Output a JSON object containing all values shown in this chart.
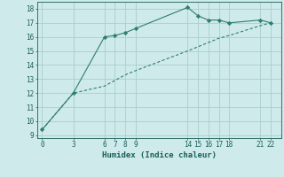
{
  "line1_x": [
    0,
    3,
    6,
    7,
    8,
    9,
    14,
    15,
    16,
    17,
    18,
    21,
    22
  ],
  "line1_y": [
    9.4,
    12.0,
    16.0,
    16.1,
    16.3,
    16.6,
    18.1,
    17.5,
    17.2,
    17.2,
    17.0,
    17.2,
    17.0
  ],
  "line2_x": [
    0,
    3,
    6,
    7,
    8,
    9,
    14,
    15,
    16,
    17,
    18,
    21,
    22
  ],
  "line2_y": [
    9.4,
    12.0,
    12.5,
    12.9,
    13.3,
    13.6,
    15.0,
    15.3,
    15.6,
    15.9,
    16.1,
    16.8,
    17.0
  ],
  "xlabel": "Humidex (Indice chaleur)",
  "xticks": [
    0,
    3,
    6,
    7,
    8,
    9,
    14,
    15,
    16,
    17,
    18,
    21,
    22
  ],
  "yticks": [
    9,
    10,
    11,
    12,
    13,
    14,
    15,
    16,
    17,
    18
  ],
  "ylim": [
    8.8,
    18.5
  ],
  "xlim": [
    -0.5,
    23.0
  ],
  "line_color": "#2e7d6e",
  "bg_color": "#ceeaea",
  "grid_color": "#aacece",
  "font_color": "#1a5f5a",
  "tick_fontsize": 5.5,
  "xlabel_fontsize": 6.5
}
